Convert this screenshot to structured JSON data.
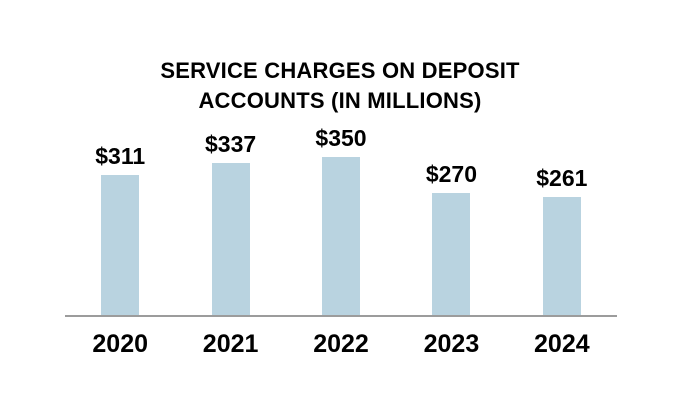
{
  "chart_data": {
    "type": "bar",
    "title": "SERVICE CHARGES ON DEPOSIT ACCOUNTS (IN MILLIONS)",
    "title_lines": [
      "SERVICE CHARGES ON DEPOSIT",
      "ACCOUNTS (IN MILLIONS)"
    ],
    "categories": [
      "2020",
      "2021",
      "2022",
      "2023",
      "2024"
    ],
    "values": [
      311,
      337,
      350,
      270,
      261
    ],
    "value_labels": [
      "$311",
      "$337",
      "$350",
      "$270",
      "$261"
    ],
    "xlabel": "",
    "ylabel": "",
    "ylim": [
      0,
      350
    ],
    "grid": false,
    "legend": false,
    "bar_color": "#b9d3e0",
    "axis_line_color": "#9c9c9c",
    "text_color": "#000000",
    "background_color": "#ffffff"
  }
}
